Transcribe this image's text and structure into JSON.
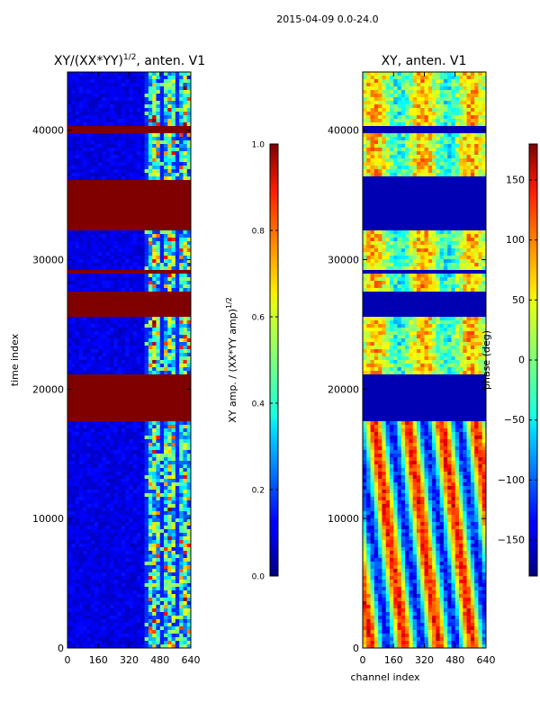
{
  "suptitle": "2015-04-09 0.0-24.0",
  "chart_data": [
    {
      "type": "heatmap",
      "title_main": "XY/(XX*YY)",
      "title_sup": "1/2",
      "title_rest": ", anten. V1",
      "xlabel": "",
      "ylabel": "time index",
      "xlim": [
        0,
        640
      ],
      "ylim": [
        0,
        44500
      ],
      "xticks": [
        0,
        160,
        320,
        480,
        640
      ],
      "yticks": [
        0,
        10000,
        20000,
        30000,
        40000
      ],
      "columns_note": "channels 0-400 low amplitude; 400-640 bright structure",
      "saturated_time_bands": [
        [
          17500,
          21000
        ],
        [
          25700,
          27500
        ],
        [
          28800,
          29300
        ],
        [
          32300,
          36100
        ],
        [
          39800,
          40400
        ]
      ],
      "colorbar": {
        "label_main": "XY amp. / (XX*YY amp)",
        "label_sup": "1/2",
        "vmin": 0.0,
        "vmax": 1.0,
        "ticks": [
          "0.0",
          "0.2",
          "0.4",
          "0.6",
          "0.8",
          "1.0"
        ]
      }
    },
    {
      "type": "heatmap",
      "title": "XY, anten. V1",
      "xlabel": "channel index",
      "ylabel": "",
      "xlim": [
        0,
        640
      ],
      "ylim": [
        0,
        44500
      ],
      "xticks": [
        0,
        160,
        320,
        480,
        640
      ],
      "yticks": [
        0,
        10000,
        20000,
        30000,
        40000
      ],
      "flagged_time_bands": [
        [
          17500,
          21000
        ],
        [
          25700,
          27500
        ],
        [
          28800,
          29300
        ],
        [
          32300,
          36500
        ],
        [
          39800,
          40400
        ]
      ],
      "colorbar": {
        "label": "phase (deg)",
        "vmin": -180,
        "vmax": 180,
        "ticks": [
          "−150",
          "−100",
          "−50",
          "0",
          "50",
          "100",
          "150"
        ]
      }
    }
  ]
}
